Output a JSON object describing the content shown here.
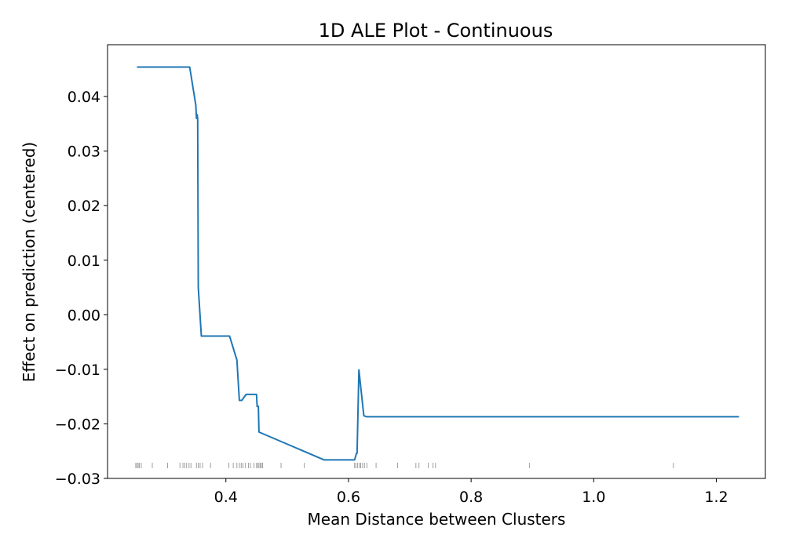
{
  "chart_data": {
    "type": "line",
    "title": "1D ALE Plot - Continuous",
    "xlabel": "Mean Distance between Clusters",
    "ylabel": "Effect on prediction (centered)",
    "xlim": [
      0.207,
      1.28
    ],
    "ylim": [
      -0.03,
      0.0495
    ],
    "xticks": [
      {
        "value": 0.4,
        "label": "0.4"
      },
      {
        "value": 0.6,
        "label": "0.6"
      },
      {
        "value": 0.8,
        "label": "0.8"
      },
      {
        "value": 1.0,
        "label": "1.0"
      },
      {
        "value": 1.2,
        "label": "1.2"
      }
    ],
    "yticks": [
      {
        "value": 0.04,
        "label": "0.04"
      },
      {
        "value": 0.03,
        "label": "0.03"
      },
      {
        "value": 0.02,
        "label": "0.02"
      },
      {
        "value": 0.01,
        "label": "0.01"
      },
      {
        "value": 0.0,
        "label": "0.00"
      },
      {
        "value": -0.01,
        "label": "−0.01"
      },
      {
        "value": -0.02,
        "label": "−0.02"
      },
      {
        "value": -0.03,
        "label": "−0.03"
      }
    ],
    "series": [
      {
        "name": "ALE",
        "color": "#1f77b4",
        "x": [
          0.255,
          0.341,
          0.351,
          0.352,
          0.353,
          0.354,
          0.355,
          0.36,
          0.406,
          0.418,
          0.422,
          0.426,
          0.433,
          0.45,
          0.451,
          0.453,
          0.454,
          0.56,
          0.61,
          0.613,
          0.614,
          0.617,
          0.625,
          0.63,
          1.237
        ],
        "values": [
          0.0454,
          0.0454,
          0.0384,
          0.036,
          0.0367,
          0.036,
          0.005,
          -0.0039,
          -0.0039,
          -0.0083,
          -0.0157,
          -0.0157,
          -0.0146,
          -0.0146,
          -0.0168,
          -0.0168,
          -0.0215,
          -0.0266,
          -0.0266,
          -0.0254,
          -0.0254,
          -0.0101,
          -0.0185,
          -0.0187,
          -0.0187
        ]
      }
    ],
    "rug": {
      "color": "#888888",
      "x": [
        0.253,
        0.255,
        0.257,
        0.259,
        0.262,
        0.28,
        0.305,
        0.325,
        0.33,
        0.333,
        0.336,
        0.34,
        0.343,
        0.352,
        0.355,
        0.358,
        0.362,
        0.375,
        0.405,
        0.412,
        0.418,
        0.422,
        0.425,
        0.428,
        0.432,
        0.437,
        0.44,
        0.446,
        0.45,
        0.452,
        0.454,
        0.456,
        0.458,
        0.46,
        0.49,
        0.528,
        0.61,
        0.612,
        0.615,
        0.618,
        0.62,
        0.623,
        0.626,
        0.63,
        0.645,
        0.68,
        0.71,
        0.715,
        0.73,
        0.738,
        0.742,
        0.895,
        1.13
      ]
    },
    "grid": false,
    "legend": "none"
  }
}
